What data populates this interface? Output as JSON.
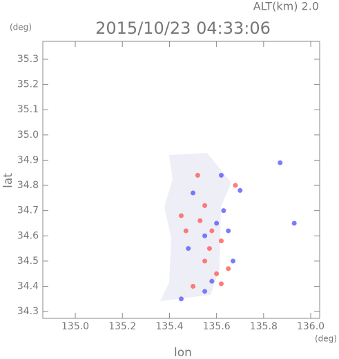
{
  "header": {
    "altitude": "ALT(km) 2.0",
    "y_unit": "(deg)",
    "x_unit": "(deg)"
  },
  "chart_data": {
    "type": "scatter",
    "title": "2015/10/23 04:33:06",
    "x_label": "lon",
    "y_label": "lat",
    "xlim": [
      134.862,
      136.038
    ],
    "ylim": [
      34.273,
      35.371
    ],
    "xticks": [
      {
        "value": 135,
        "label": "135.0"
      },
      135.2,
      135.4,
      135.6,
      135.8,
      {
        "value": 136,
        "label": "136.0"
      }
    ],
    "yticks": [
      35.3,
      35.2,
      35.1,
      {
        "value": 35,
        "label": "35.0"
      },
      34.9,
      34.8,
      34.7,
      34.6,
      34.5,
      34.4,
      34.3
    ],
    "series": [
      {
        "color": "#ff5a5a",
        "x": [
          135.52,
          135.55,
          135.58,
          135.62,
          135.47,
          135.55,
          135.6,
          135.65,
          135.5,
          135.62,
          135.57,
          135.68,
          135.53,
          135.45
        ],
        "y": [
          34.84,
          34.72,
          34.62,
          34.58,
          34.62,
          34.5,
          34.45,
          34.47,
          34.4,
          34.41,
          34.55,
          34.8,
          34.66,
          34.68
        ]
      },
      {
        "color": "#5a5aff",
        "x": [
          135.62,
          135.7,
          135.5,
          135.6,
          135.55,
          135.65,
          135.48,
          135.58,
          135.67,
          135.45,
          135.87,
          135.93,
          135.55,
          135.63
        ],
        "y": [
          34.84,
          34.78,
          34.77,
          34.65,
          34.6,
          34.62,
          34.55,
          34.42,
          34.5,
          34.35,
          34.89,
          34.65,
          34.38,
          34.7
        ]
      }
    ]
  }
}
